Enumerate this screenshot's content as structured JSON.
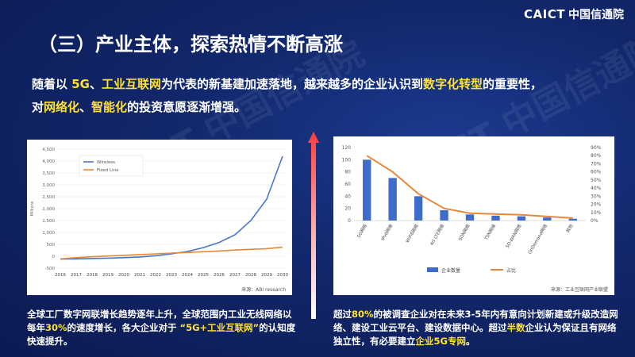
{
  "logo": {
    "mark": "CAICT",
    "name": "中国信通院"
  },
  "title": "（三）产业主体，探索热情不断高涨",
  "intro": {
    "t1": "随着以 ",
    "h1": "5G",
    "t2": "、",
    "h2": "工业互联网",
    "t3": "为代表的新基建加速落地，越来越多的企业认识到",
    "h3": "数字化转型",
    "t4": "的重要性，",
    "t5": "对",
    "h4": "网络化",
    "t6": "、",
    "h5": "智能化",
    "t7": "的投资意愿逐渐增强。"
  },
  "left_chart": {
    "source": "来源：ABI research"
  },
  "right_chart": {
    "source": "来源：工业互联网产业联盟"
  },
  "caption_left": {
    "t1": "全球工厂数字网联增长趋势逐年上升，全球范围内工业无线网络以每年",
    "h1": "30%",
    "t2": "的速度增长，各大企业对于 ",
    "h2": "“5G+工业互联网”",
    "t3": "的认知度快速提升。"
  },
  "caption_right": {
    "t1": "超过",
    "h1": "80%",
    "t2": "的被调查企业对在未来3-5年内有意向计划新建或升级改造网络、建设工业云平台、建设数据中心。超过",
    "h2": "半数",
    "t3": "企业认为保证且有网络独立性，有必要建立",
    "h3": "企业5G专网",
    "t4": "。"
  },
  "colors": {
    "accent": "#ffe233",
    "bar": "#3f6cc9",
    "line": "#e8883a",
    "wireless": "#4a76c8",
    "fixed": "#e8883a"
  },
  "chart_data": [
    {
      "type": "line",
      "xlabel": "",
      "ylabel": "Millions",
      "x": [
        "2016",
        "2017",
        "2018",
        "2019",
        "2020",
        "2021",
        "2022",
        "2023",
        "2024",
        "2025",
        "2026",
        "2027",
        "2028",
        "2029",
        "2030"
      ],
      "ylim": [
        -500,
        4500
      ],
      "yticks": [
        "-500",
        "0",
        "500",
        "1,000",
        "1,500",
        "2,000",
        "2,500",
        "3,000",
        "3,500",
        "4,000",
        "4,500"
      ],
      "series": [
        {
          "name": "Wireless",
          "values": [
            -120,
            -110,
            -95,
            -80,
            -60,
            -30,
            20,
            100,
            200,
            360,
            580,
            900,
            1500,
            2400,
            4200
          ]
        },
        {
          "name": "Fixed Line",
          "values": [
            -110,
            -60,
            -20,
            10,
            40,
            70,
            100,
            130,
            160,
            190,
            220,
            260,
            290,
            320,
            380
          ]
        }
      ],
      "legend": "top-left"
    },
    {
      "type": "bar",
      "categories": [
        "5G网络",
        "IPv6网络",
        "WiFi6网络",
        "4G LTE网络",
        "SDN网络",
        "TSN网络",
        "SD-WAN网络",
        "OnDemand网络",
        "其他"
      ],
      "ylim": [
        0,
        120
      ],
      "yticks": [
        "0",
        "20",
        "40",
        "60",
        "80",
        "100",
        "120"
      ],
      "y2lim": [
        0,
        0.9
      ],
      "y2ticks": [
        "0%",
        "10%",
        "20%",
        "30%",
        "40%",
        "50%",
        "60%",
        "70%",
        "80%",
        "90%"
      ],
      "series": [
        {
          "name": "企业数量",
          "values": [
            100,
            70,
            40,
            17,
            10,
            8,
            7,
            5,
            3
          ]
        },
        {
          "name": "占比",
          "values": [
            0.8,
            0.6,
            0.33,
            0.15,
            0.09,
            0.08,
            0.07,
            0.05,
            0.03
          ]
        }
      ],
      "legend": "bottom"
    }
  ]
}
